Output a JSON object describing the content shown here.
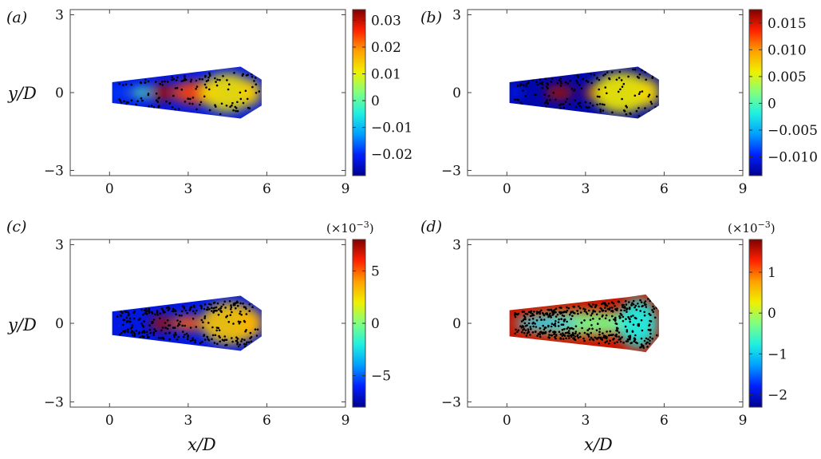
{
  "figure": {
    "background": "#ffffff",
    "colormap": [
      "#00008f",
      "#0020ff",
      "#00a0ff",
      "#20f0e0",
      "#80ff80",
      "#f0f000",
      "#ffa000",
      "#ff2000",
      "#800000"
    ]
  },
  "chart_data": [
    {
      "type": "heatmap",
      "panel_label": "(a)",
      "xlabel": "",
      "ylabel": "y/D",
      "xlim": [
        -1.5,
        9
      ],
      "ylim": [
        -3.2,
        3.2
      ],
      "xticks": [
        0,
        3,
        6,
        9
      ],
      "yticks": [
        -3,
        0,
        3
      ],
      "xtick_labels": [
        "0",
        "3",
        "6",
        "9"
      ],
      "ytick_labels": [
        "−3",
        "0",
        "3"
      ],
      "colorbar": {
        "min": -0.028,
        "max": 0.034,
        "ticks": [
          0.03,
          0.02,
          0.01,
          0,
          -0.01,
          -0.02
        ],
        "tick_labels": [
          "0.03",
          "0.02",
          "0.01",
          "0",
          "−0.01",
          "−0.02"
        ],
        "multiplier": ""
      },
      "domain_polygon": [
        [
          0.1,
          0.4
        ],
        [
          0.1,
          -0.4
        ],
        [
          5.0,
          -1.0
        ],
        [
          5.8,
          -0.5
        ],
        [
          5.8,
          0.5
        ],
        [
          5.0,
          1.0
        ]
      ],
      "blobs": [
        {
          "x": 2.0,
          "y": 0.0,
          "rx": 0.45,
          "ry": 0.35,
          "value": 0.032
        },
        {
          "x": 3.3,
          "y": 0.0,
          "rx": 0.9,
          "ry": 0.45,
          "value": 0.024
        },
        {
          "x": 4.5,
          "y": 0.0,
          "rx": 1.0,
          "ry": 0.75,
          "value": 0.012
        },
        {
          "x": 5.4,
          "y": 0.0,
          "rx": 0.4,
          "ry": 0.5,
          "value": 0.014
        },
        {
          "x": 1.2,
          "y": 0.0,
          "rx": 0.4,
          "ry": 0.2,
          "value": 0.0
        },
        {
          "x": 0.3,
          "y": 0.0,
          "rx": 0.3,
          "ry": 0.25,
          "value": -0.018
        }
      ],
      "base_value": -0.022,
      "point_count": 140
    },
    {
      "type": "heatmap",
      "panel_label": "(b)",
      "xlabel": "",
      "ylabel": "",
      "xlim": [
        -1.5,
        9
      ],
      "ylim": [
        -3.2,
        3.2
      ],
      "xticks": [
        0,
        3,
        6,
        9
      ],
      "yticks": [
        -3,
        0,
        3
      ],
      "xtick_labels": [
        "0",
        "3",
        "6",
        "9"
      ],
      "ytick_labels": [
        "−3",
        "0",
        "3"
      ],
      "colorbar": {
        "min": -0.0135,
        "max": 0.0175,
        "ticks": [
          0.015,
          0.01,
          0.005,
          0,
          -0.005,
          -0.01
        ],
        "tick_labels": [
          "0.015",
          "0.010",
          "0.005",
          "0",
          "−0.005",
          "−0.010"
        ],
        "multiplier": ""
      },
      "domain_polygon": [
        [
          0.1,
          0.4
        ],
        [
          0.1,
          -0.4
        ],
        [
          5.0,
          -1.0
        ],
        [
          5.8,
          -0.5
        ],
        [
          5.8,
          0.5
        ],
        [
          5.0,
          1.0
        ]
      ],
      "blobs": [
        {
          "x": 2.0,
          "y": 0.0,
          "rx": 0.55,
          "ry": 0.3,
          "value": 0.0165
        },
        {
          "x": 3.4,
          "y": 0.0,
          "rx": 0.5,
          "ry": 0.3,
          "value": 0.0155
        },
        {
          "x": 4.4,
          "y": 0.0,
          "rx": 1.1,
          "ry": 0.8,
          "value": 0.006
        },
        {
          "x": 5.4,
          "y": 0.0,
          "rx": 0.45,
          "ry": 0.55,
          "value": 0.007
        },
        {
          "x": 0.3,
          "y": 0.0,
          "rx": 0.3,
          "ry": 0.25,
          "value": -0.01
        }
      ],
      "base_value": -0.0125,
      "point_count": 160
    },
    {
      "type": "heatmap",
      "panel_label": "(c)",
      "xlabel": "x/D",
      "ylabel": "y/D",
      "xlim": [
        -1.5,
        9
      ],
      "ylim": [
        -3.2,
        3.2
      ],
      "xticks": [
        0,
        3,
        6,
        9
      ],
      "yticks": [
        -3,
        0,
        3
      ],
      "xtick_labels": [
        "0",
        "3",
        "6",
        "9"
      ],
      "ytick_labels": [
        "−3",
        "0",
        "3"
      ],
      "colorbar": {
        "min": -8,
        "max": 8,
        "ticks": [
          5,
          0,
          -5
        ],
        "tick_labels": [
          "5",
          "0",
          "−5"
        ],
        "multiplier": "(×10−3)"
      },
      "domain_polygon": [
        [
          0.1,
          0.45
        ],
        [
          0.1,
          -0.45
        ],
        [
          5.0,
          -1.05
        ],
        [
          5.8,
          -0.5
        ],
        [
          5.8,
          0.5
        ],
        [
          5.0,
          1.05
        ]
      ],
      "blobs": [
        {
          "x": 2.0,
          "y": 0.0,
          "rx": 0.5,
          "ry": 0.3,
          "value": 7.5
        },
        {
          "x": 3.0,
          "y": 0.0,
          "rx": 0.6,
          "ry": 0.3,
          "value": 5.0
        },
        {
          "x": 4.6,
          "y": 0.0,
          "rx": 1.1,
          "ry": 0.8,
          "value": 3.0
        },
        {
          "x": 5.4,
          "y": 0.0,
          "rx": 0.45,
          "ry": 0.55,
          "value": 3.5
        }
      ],
      "base_value": -6.5,
      "point_count": 320
    },
    {
      "type": "heatmap",
      "panel_label": "(d)",
      "xlabel": "x/D",
      "ylabel": "",
      "xlim": [
        -1.5,
        9
      ],
      "ylim": [
        -3.2,
        3.2
      ],
      "xticks": [
        0,
        3,
        6,
        9
      ],
      "yticks": [
        -3,
        0,
        3
      ],
      "xtick_labels": [
        "0",
        "3",
        "6",
        "9"
      ],
      "ytick_labels": [
        "−3",
        "0",
        "3"
      ],
      "colorbar": {
        "min": -2.3,
        "max": 1.8,
        "ticks": [
          1,
          0,
          -1,
          -2
        ],
        "tick_labels": [
          "1",
          "0",
          "−1",
          "−2"
        ],
        "multiplier": "(×10−3)"
      },
      "domain_polygon": [
        [
          0.1,
          0.5
        ],
        [
          0.1,
          -0.5
        ],
        [
          4.6,
          -1.0
        ],
        [
          5.3,
          -1.1
        ],
        [
          5.8,
          -0.5
        ],
        [
          5.8,
          0.5
        ],
        [
          5.3,
          1.1
        ],
        [
          4.6,
          1.0
        ]
      ],
      "blobs": [
        {
          "x": 3.0,
          "y": 0.0,
          "rx": 2.7,
          "ry": 0.45,
          "value": -0.3
        },
        {
          "x": 5.0,
          "y": 0.0,
          "rx": 0.75,
          "ry": 0.95,
          "value": -0.8
        },
        {
          "x": 1.5,
          "y": 0.0,
          "rx": 1.2,
          "ry": 0.2,
          "value": -1.2
        }
      ],
      "base_value": 1.5,
      "point_count": 520
    }
  ]
}
